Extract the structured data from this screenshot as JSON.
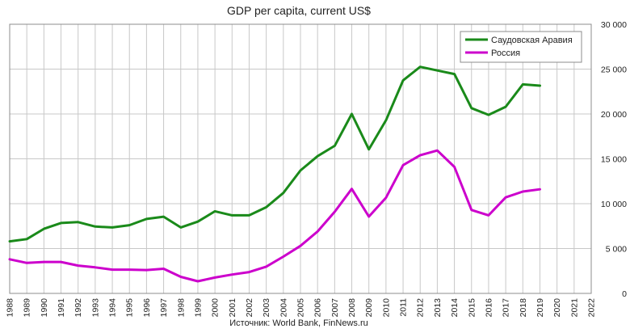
{
  "chart_data": {
    "type": "line",
    "title": "GDP per capita, current US$",
    "source": "Источник: World Bank, FinNews.ru",
    "x": [
      1988,
      1989,
      1990,
      1991,
      1992,
      1993,
      1994,
      1995,
      1996,
      1997,
      1998,
      1999,
      2000,
      2001,
      2002,
      2003,
      2004,
      2005,
      2006,
      2007,
      2008,
      2009,
      2010,
      2011,
      2012,
      2013,
      2014,
      2015,
      2016,
      2017,
      2018,
      2019
    ],
    "xlim": [
      1988,
      2022
    ],
    "x_ticks": [
      "1988",
      "1989",
      "1990",
      "1991",
      "1992",
      "1993",
      "1994",
      "1995",
      "1996",
      "1997",
      "1998",
      "1999",
      "2000",
      "2001",
      "2002",
      "2003",
      "2004",
      "2005",
      "2006",
      "2007",
      "2008",
      "2009",
      "2010",
      "2011",
      "2012",
      "2013",
      "2014",
      "2015",
      "2016",
      "2017",
      "2018",
      "2019",
      "2020",
      "2021",
      "2022"
    ],
    "ylim": [
      0,
      30000
    ],
    "y_ticks": [
      "0",
      "5 000",
      "10 000",
      "15 000",
      "20 000",
      "25 000",
      "30 000"
    ],
    "y_tick_values": [
      0,
      5000,
      10000,
      15000,
      20000,
      25000,
      30000
    ],
    "y_axis_position": "right",
    "grid": true,
    "legend_position": "top-right",
    "series": [
      {
        "name": "Саудовская Аравия",
        "color": "#1a8a1a",
        "values": [
          5800,
          6050,
          7200,
          7850,
          7950,
          7450,
          7350,
          7600,
          8300,
          8550,
          7350,
          8000,
          9150,
          8700,
          8700,
          9600,
          11200,
          13700,
          15300,
          16450,
          20000,
          16050,
          19300,
          23750,
          25250,
          24850,
          24450,
          20650,
          19900,
          20800,
          23300,
          23150
        ]
      },
      {
        "name": "Россия",
        "color": "#cc00cc",
        "values": [
          3800,
          3400,
          3500,
          3500,
          3100,
          2900,
          2650,
          2650,
          2600,
          2750,
          1850,
          1350,
          1770,
          2100,
          2380,
          2980,
          4100,
          5300,
          6900,
          9100,
          11650,
          8560,
          10670,
          14300,
          15400,
          15930,
          14100,
          9300,
          8700,
          10700,
          11350,
          11600
        ]
      }
    ]
  }
}
